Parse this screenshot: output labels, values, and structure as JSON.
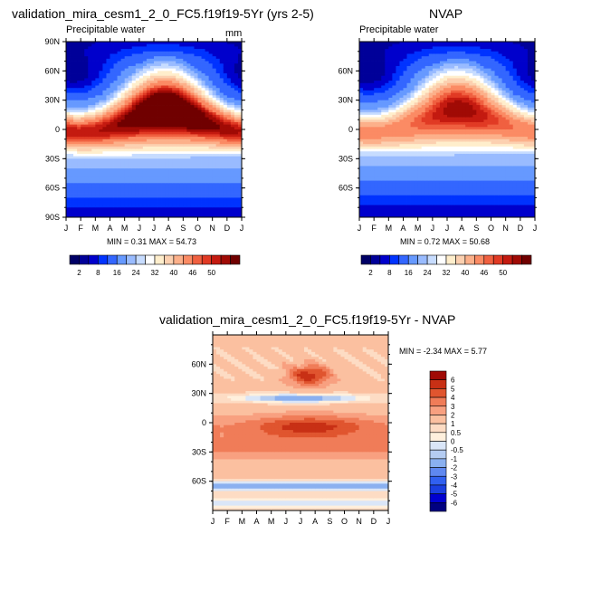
{
  "colors": {
    "full_field": [
      "#000066",
      "#000099",
      "#0000cc",
      "#0033ff",
      "#3366ff",
      "#6699ff",
      "#99bbff",
      "#c7dcff",
      "#ffffff",
      "#ffeecc",
      "#fcd0b0",
      "#fcb08a",
      "#fb8b64",
      "#f06040",
      "#e13a24",
      "#c41a10",
      "#a00a05",
      "#700000"
    ],
    "diff": [
      "#000080",
      "#0000d0",
      "#1a3fe0",
      "#3060f0",
      "#5f88f0",
      "#8ab0f0",
      "#b4ccf2",
      "#dae6f8",
      "#fff0dd",
      "#fddcc4",
      "#fbc0a0",
      "#f8a080",
      "#f07c58",
      "#e0552f",
      "#c83015",
      "#a00a05"
    ]
  },
  "panels": [
    {
      "title": "validation_mira_cesm1_2_0_FC5.f19f19-5Yr (yrs 2-5)",
      "subtitle": "Precipitable water",
      "units": "mm",
      "min_max": "MIN =  0.31 MAX =  54.73",
      "ylabels": [
        "90N",
        "60N",
        "30N",
        "0",
        "30S",
        "60S",
        "90S"
      ],
      "xlabels": [
        "J",
        "F",
        "M",
        "A",
        "M",
        "J",
        "J",
        "A",
        "S",
        "O",
        "N",
        "D",
        "J"
      ]
    },
    {
      "title": "NVAP",
      "subtitle": "Precipitable water",
      "min_max": "MIN =  0.72 MAX =  50.68",
      "ylabels": [
        "60N",
        "30N",
        "0",
        "30S",
        "60S"
      ],
      "xlabels": [
        "J",
        "F",
        "M",
        "A",
        "M",
        "J",
        "J",
        "A",
        "S",
        "O",
        "N",
        "D",
        "J"
      ]
    },
    {
      "title": "validation_mira_cesm1_2_0_FC5.f19f19-5Yr - NVAP",
      "min_max": "MIN =  -2.34 MAX =   5.77",
      "ylabels": [
        "60N",
        "30N",
        "0",
        "30S",
        "60S"
      ],
      "xlabels": [
        "J",
        "F",
        "M",
        "A",
        "M",
        "J",
        "J",
        "A",
        "S",
        "O",
        "N",
        "D",
        "J"
      ]
    }
  ],
  "colorbar_full": [
    "2",
    "8",
    "16",
    "24",
    "32",
    "40",
    "46",
    "50"
  ],
  "colorbar_diff": [
    "6",
    "5",
    "4",
    "3",
    "2",
    "1",
    "0.5",
    "0",
    "-0.5",
    "-1",
    "-2",
    "-3",
    "-4",
    "-5",
    "-6"
  ],
  "chart_data": [
    {
      "type": "heatmap",
      "title": "validation_mira_cesm1_2_0_FC5.f19f19-5Yr (yrs 2-5)",
      "subtitle": "Precipitable water",
      "units": "mm",
      "xlabel": "",
      "ylabel": "",
      "x": [
        "J",
        "F",
        "M",
        "A",
        "M",
        "J",
        "J",
        "A",
        "S",
        "O",
        "N",
        "D",
        "J"
      ],
      "y_range": [
        -90,
        90
      ],
      "min": 0.31,
      "max": 54.73,
      "levels": [
        2,
        4,
        6,
        8,
        12,
        16,
        20,
        24,
        28,
        32,
        36,
        40,
        44,
        46,
        48,
        50,
        52
      ]
    },
    {
      "type": "heatmap",
      "title": "NVAP",
      "subtitle": "Precipitable water",
      "xlabel": "",
      "ylabel": "",
      "x": [
        "J",
        "F",
        "M",
        "A",
        "M",
        "J",
        "J",
        "A",
        "S",
        "O",
        "N",
        "D",
        "J"
      ],
      "y_range": [
        -90,
        90
      ],
      "min": 0.72,
      "max": 50.68,
      "levels": [
        2,
        4,
        6,
        8,
        12,
        16,
        20,
        24,
        28,
        32,
        36,
        40,
        44,
        46,
        48,
        50,
        52
      ]
    },
    {
      "type": "heatmap",
      "title": "validation_mira_cesm1_2_0_FC5.f19f19-5Yr - NVAP",
      "xlabel": "",
      "ylabel": "",
      "x": [
        "J",
        "F",
        "M",
        "A",
        "M",
        "J",
        "J",
        "A",
        "S",
        "O",
        "N",
        "D",
        "J"
      ],
      "y_range": [
        -90,
        90
      ],
      "min": -2.34,
      "max": 5.77,
      "levels": [
        -6,
        -5,
        -4,
        -3,
        -2,
        -1,
        -0.5,
        0,
        0.5,
        1,
        2,
        3,
        4,
        5,
        6
      ]
    }
  ]
}
